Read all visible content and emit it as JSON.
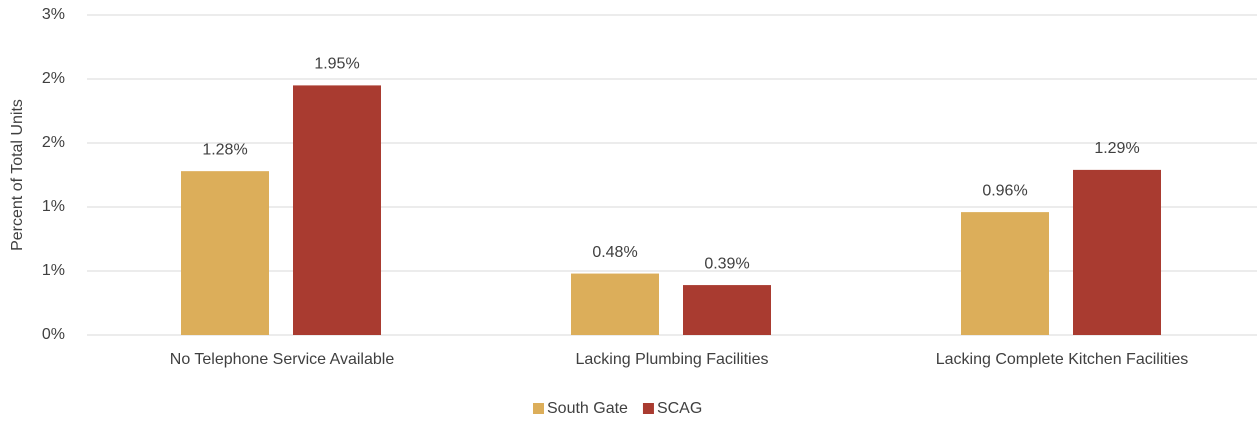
{
  "chart_data": {
    "type": "bar",
    "y_label": "Percent of Total Units",
    "categories": [
      "No Telephone Service Available",
      "Lacking Plumbing Facilities",
      "Lacking Complete Kitchen Facilities"
    ],
    "series": [
      {
        "name": "South Gate",
        "color": "#dcae5a",
        "values": [
          1.28,
          0.48,
          0.96
        ],
        "value_labels": [
          "1.28%",
          "0.48%",
          "0.96%"
        ]
      },
      {
        "name": "SCAG",
        "color": "#a93b30",
        "values": [
          1.95,
          0.39,
          1.29
        ],
        "value_labels": [
          "1.95%",
          "0.39%",
          "1.29%"
        ]
      }
    ],
    "ylim": [
      0,
      2.5
    ],
    "yticks": [
      {
        "value": 0,
        "label": "0%"
      },
      {
        "value": 0.5,
        "label": "1%"
      },
      {
        "value": 1,
        "label": "1%"
      },
      {
        "value": 1.5,
        "label": "2%"
      },
      {
        "value": 2,
        "label": "2%"
      },
      {
        "value": 2.5,
        "label": "3%"
      }
    ],
    "grid": true,
    "legend": "bottom"
  }
}
